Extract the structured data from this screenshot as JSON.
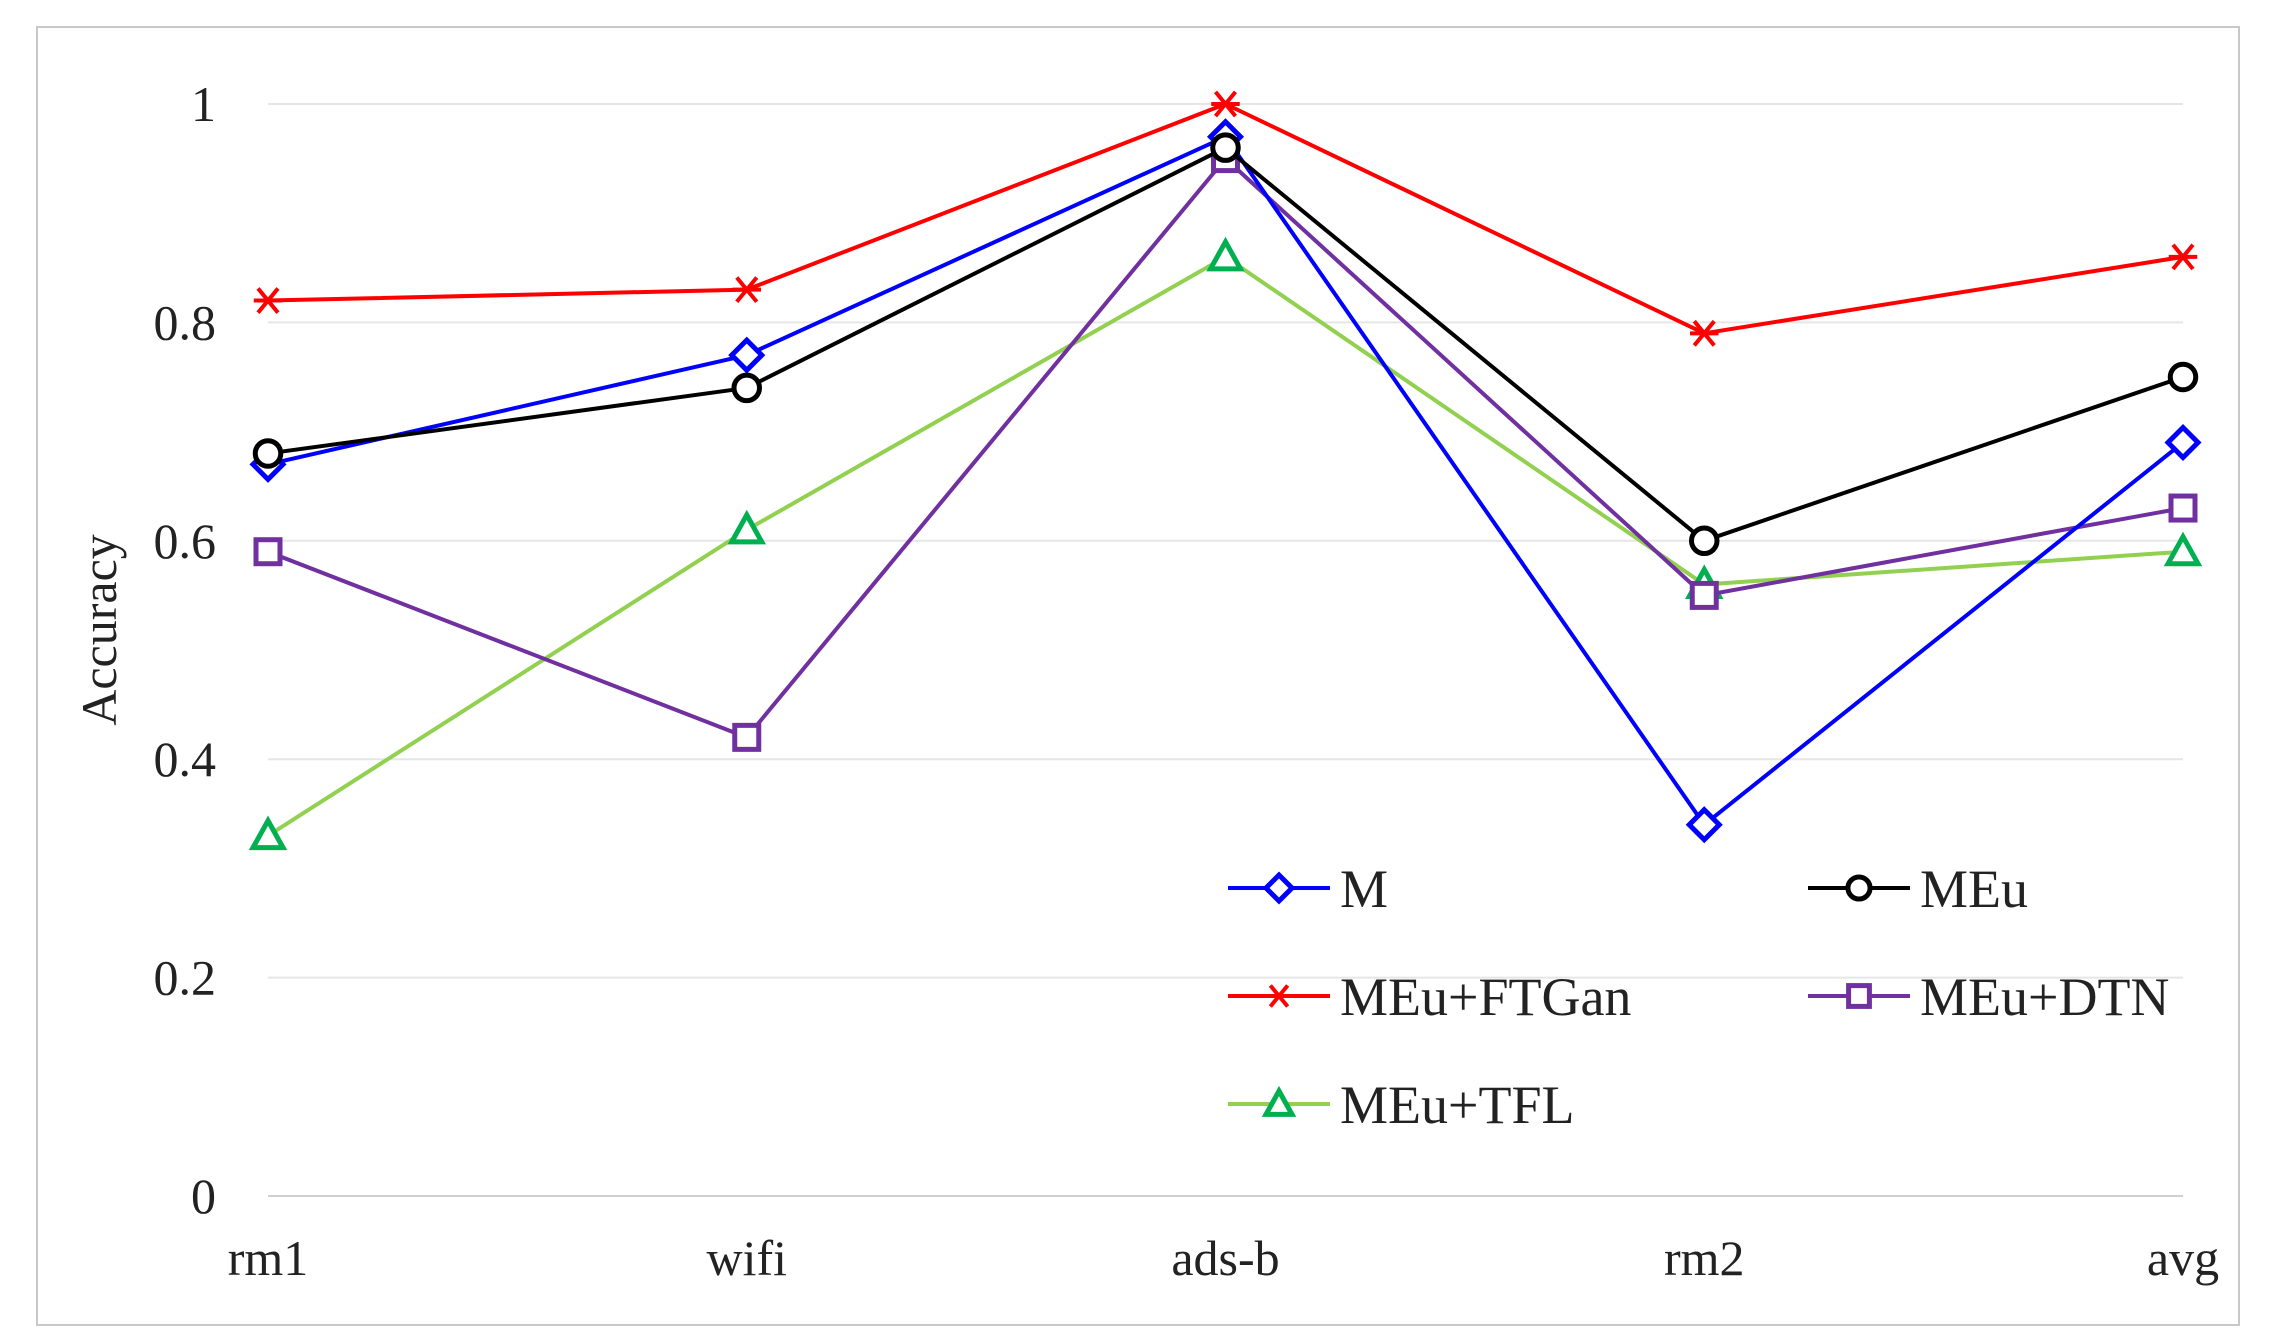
{
  "chart_data": {
    "type": "line",
    "title": "",
    "xlabel": "",
    "ylabel": "Accuracy",
    "categories": [
      "rm1",
      "wifi",
      "ads-b",
      "rm2",
      "avg"
    ],
    "ylim": [
      0,
      1
    ],
    "yticks": [
      0,
      0.2,
      0.4,
      0.6,
      0.8,
      1
    ],
    "ytick_labels": [
      "0",
      "0.2",
      "0.4",
      "0.6",
      "0.8",
      "1"
    ],
    "grid": true,
    "legend_position": "bottom-right",
    "series": [
      {
        "name": "M",
        "color": "#0000ff",
        "marker": "diamond",
        "values": [
          0.67,
          0.77,
          0.97,
          0.34,
          0.69
        ]
      },
      {
        "name": "MEu",
        "color": "#000000",
        "marker": "circle",
        "values": [
          0.68,
          0.74,
          0.96,
          0.6,
          0.75
        ]
      },
      {
        "name": "MEu+FTGan",
        "color": "#ff0000",
        "marker": "asterisk",
        "values": [
          0.82,
          0.83,
          1.0,
          0.79,
          0.86
        ]
      },
      {
        "name": "MEu+DTN",
        "color": "#7030a0",
        "marker": "square",
        "values": [
          0.59,
          0.42,
          0.95,
          0.55,
          0.63
        ]
      },
      {
        "name": "MEu+TFL",
        "color": "#92d050",
        "marker_color": "#00b050",
        "marker": "triangle",
        "values": [
          0.33,
          0.61,
          0.86,
          0.56,
          0.59
        ]
      }
    ]
  }
}
